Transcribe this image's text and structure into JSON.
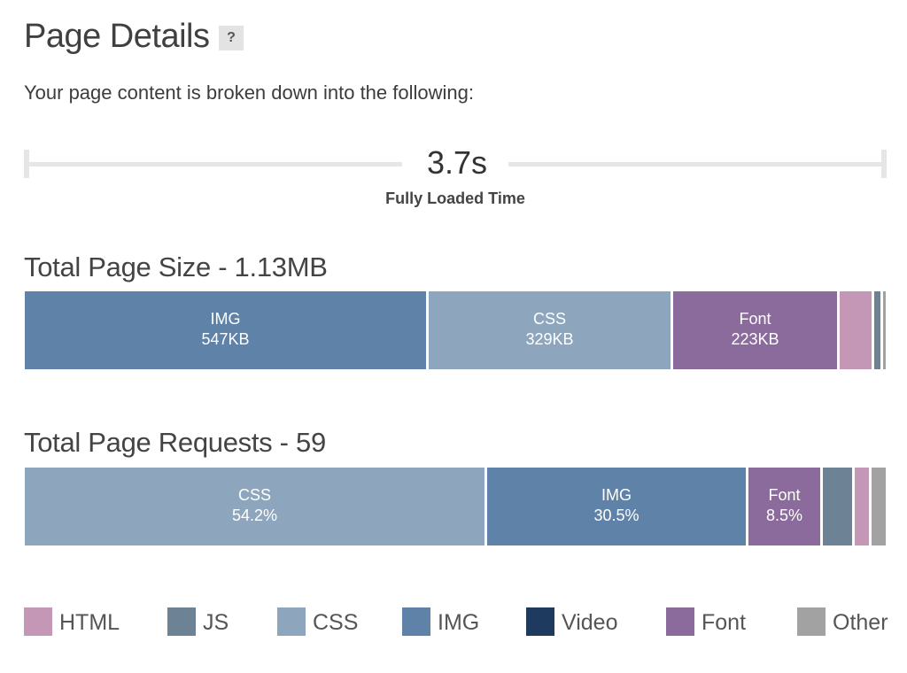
{
  "header": {
    "title": "Page Details",
    "help_label": "?",
    "intro": "Your page content is broken down into the following:"
  },
  "load_time": {
    "value": "3.7s",
    "label": "Fully Loaded Time"
  },
  "colors": {
    "HTML": "#c597b7",
    "JS": "#6d8295",
    "CSS": "#8da6bd",
    "IMG": "#5f82a8",
    "Video": "#1f3a5f",
    "Font": "#8a6b9c",
    "Other": "#a2a2a2"
  },
  "legend": [
    "HTML",
    "JS",
    "CSS",
    "IMG",
    "Video",
    "Font",
    "Other"
  ],
  "chart_data": [
    {
      "type": "bar",
      "orientation": "horizontal-stacked",
      "title": "Total Page Size - 1.13MB",
      "unit": "KB",
      "segments": [
        {
          "category": "IMG",
          "value": 547,
          "label": "IMG",
          "value_label": "547KB"
        },
        {
          "category": "CSS",
          "value": 329,
          "label": "CSS",
          "value_label": "329KB"
        },
        {
          "category": "Font",
          "value": 223,
          "label": "Font",
          "value_label": "223KB"
        },
        {
          "category": "HTML",
          "value": 44,
          "label": "",
          "value_label": ""
        },
        {
          "category": "JS",
          "value": 8,
          "label": "",
          "value_label": ""
        },
        {
          "category": "Other",
          "value": 4,
          "label": "",
          "value_label": ""
        }
      ]
    },
    {
      "type": "bar",
      "orientation": "horizontal-stacked",
      "title": "Total Page Requests - 59",
      "unit": "%",
      "segments": [
        {
          "category": "CSS",
          "value": 54.2,
          "label": "CSS",
          "value_label": "54.2%"
        },
        {
          "category": "IMG",
          "value": 30.5,
          "label": "IMG",
          "value_label": "30.5%"
        },
        {
          "category": "Font",
          "value": 8.5,
          "label": "Font",
          "value_label": "8.5%"
        },
        {
          "category": "JS",
          "value": 3.4,
          "label": "",
          "value_label": ""
        },
        {
          "category": "HTML",
          "value": 1.7,
          "label": "",
          "value_label": ""
        },
        {
          "category": "Other",
          "value": 1.7,
          "label": "",
          "value_label": ""
        }
      ]
    }
  ]
}
